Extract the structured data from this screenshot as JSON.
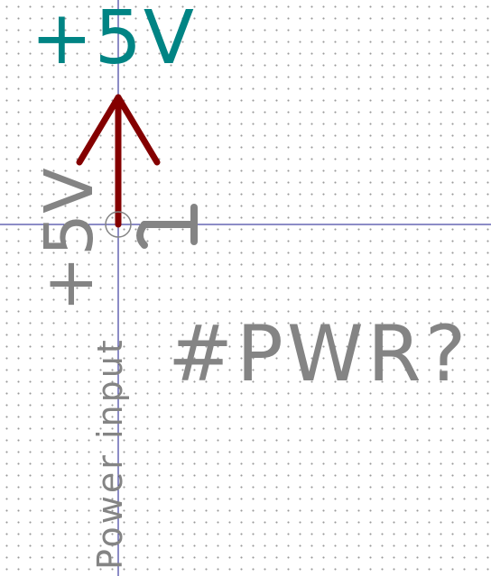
{
  "schematic": {
    "value_label": "+5V",
    "reference_label": "#PWR?",
    "pin": {
      "name": "+5V",
      "number": "1",
      "electrical_type": "Power input"
    }
  },
  "colors": {
    "background": "#ffffff",
    "grid": "#9a9a9a",
    "crosshair": "#1a1a8c",
    "body": "#840000",
    "value": "#008484",
    "pin_text": "#848484"
  }
}
